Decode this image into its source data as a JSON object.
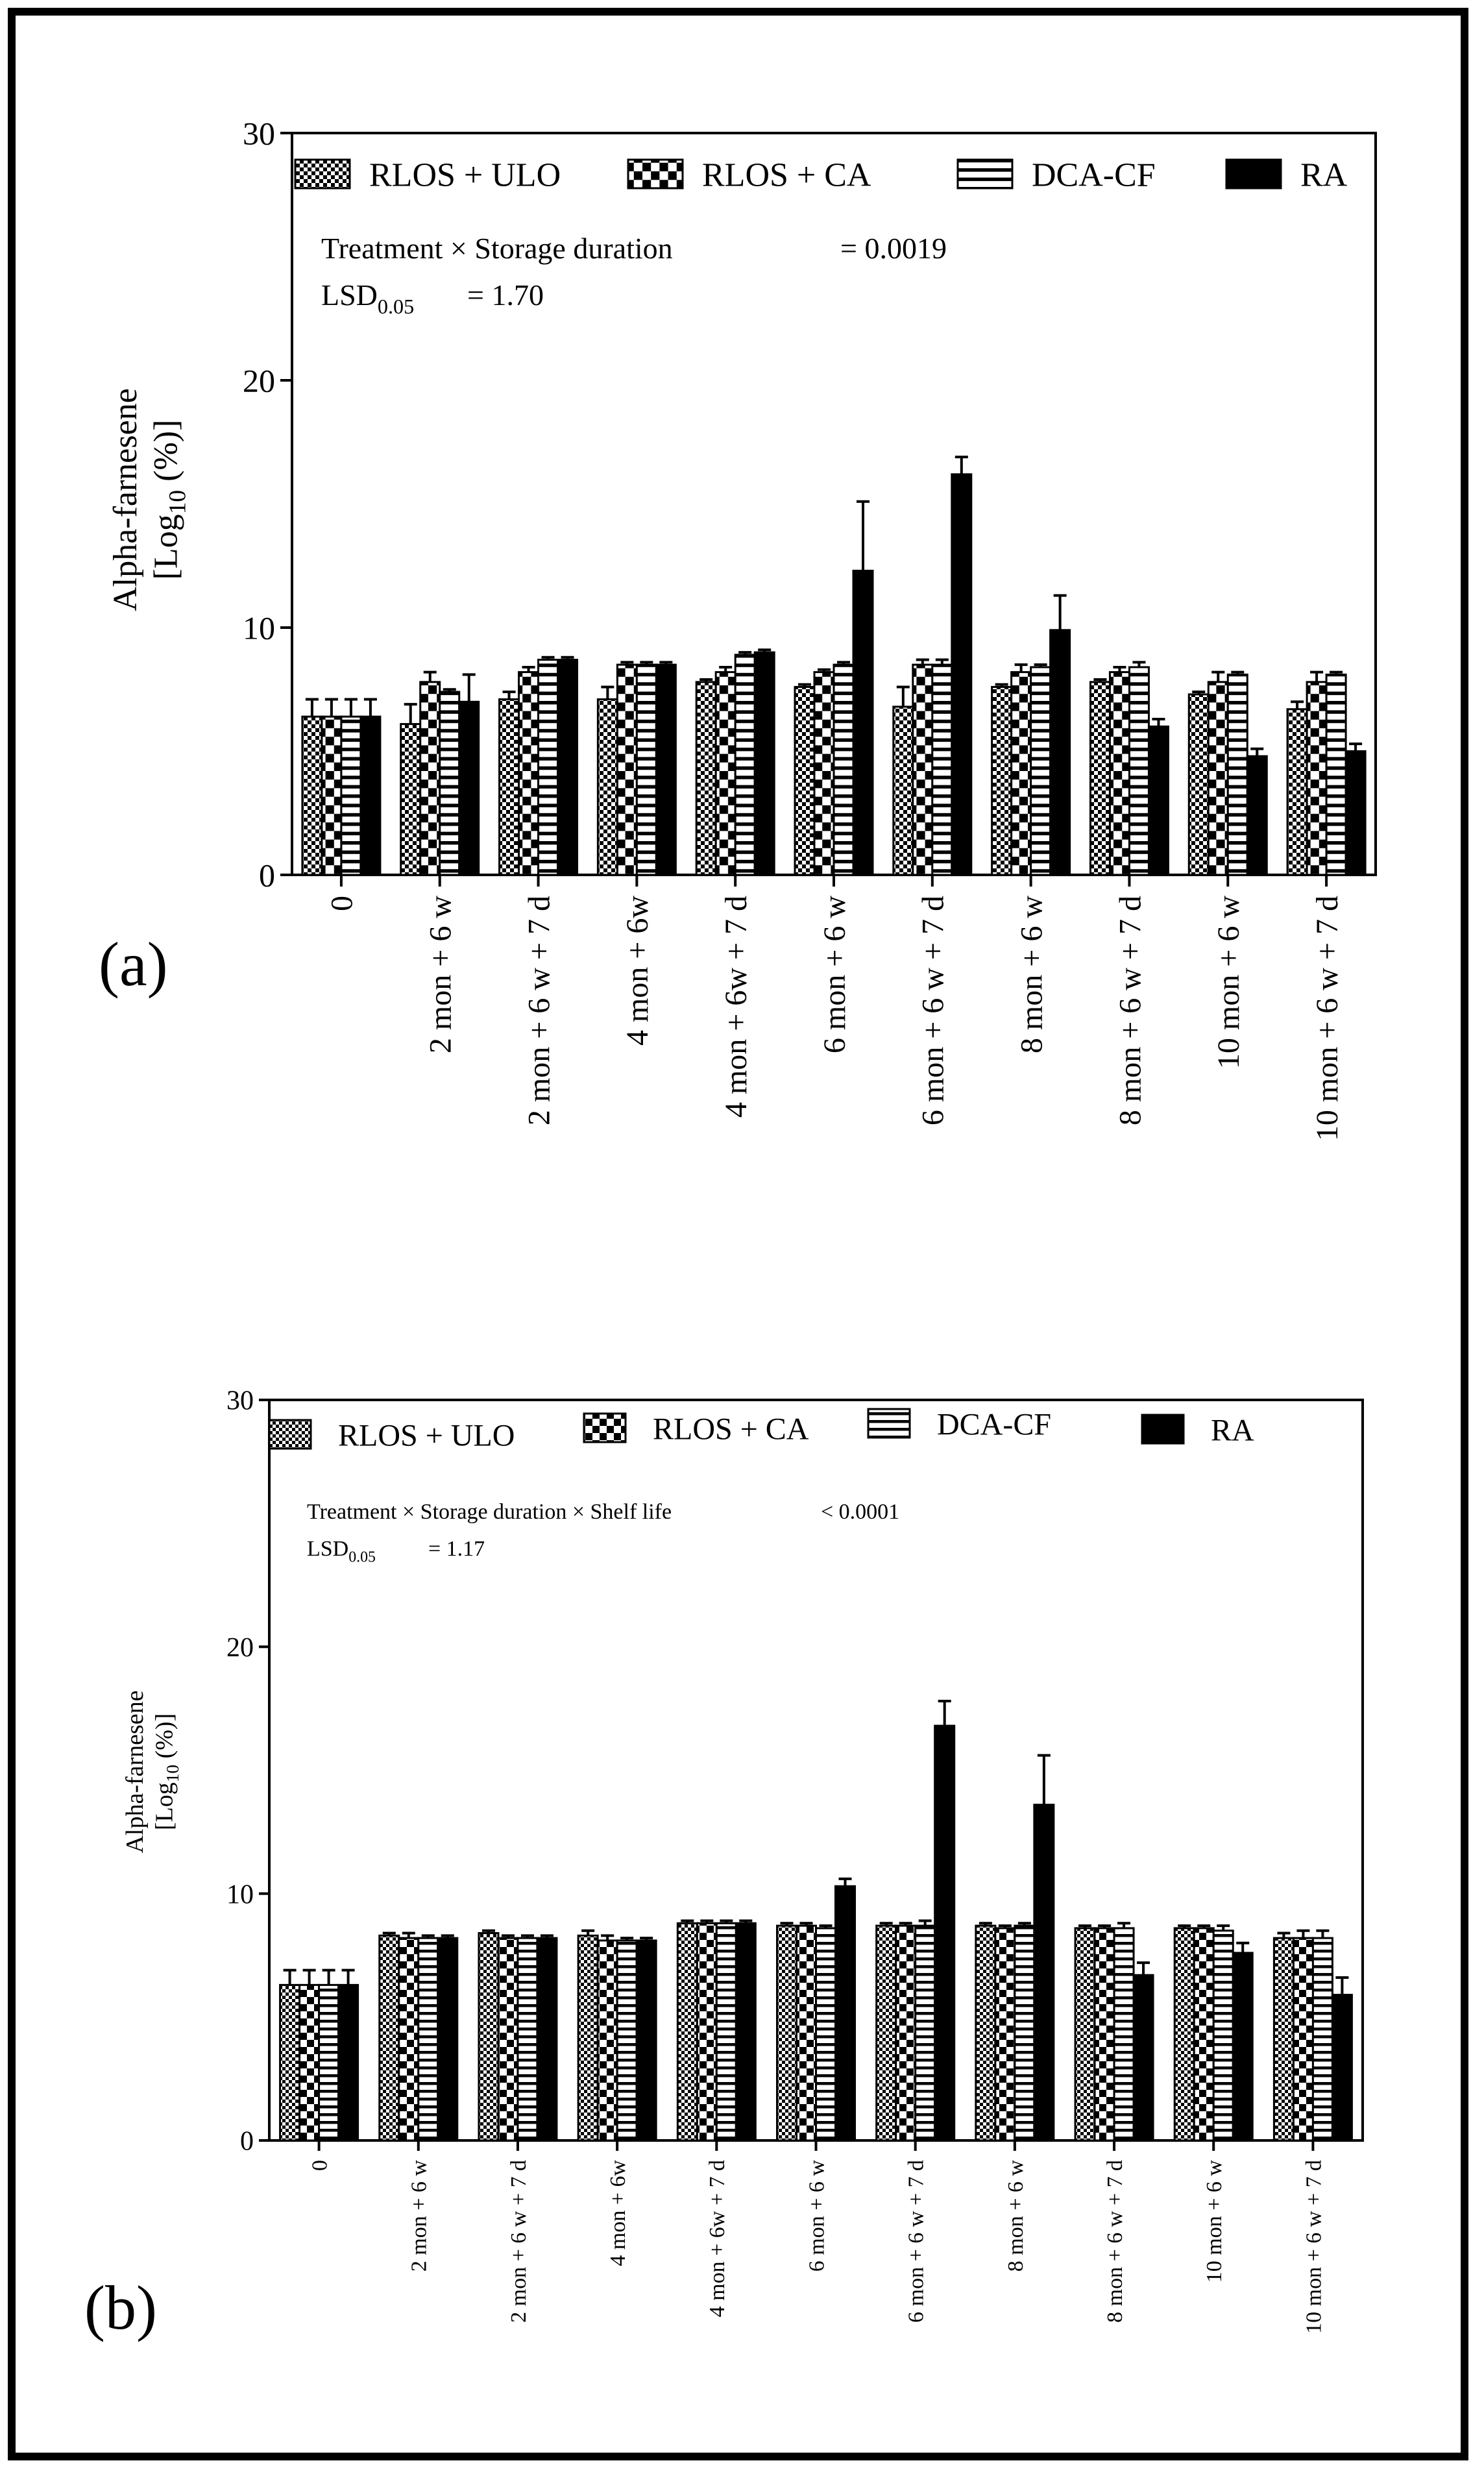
{
  "panel_labels": {
    "a": "(a)",
    "b": "(b)"
  },
  "colors": {
    "ink": "#000000",
    "background": "#ffffff"
  },
  "legend_patterns": {
    "RLOS + ULO": "fine-check",
    "RLOS + CA": "coarse-check",
    "DCA-CF": "horizontal-lines",
    "RA": "solid"
  },
  "chart_data": [
    {
      "id": "a",
      "type": "bar",
      "categories": [
        "0",
        "2 mon + 6 w",
        "2 mon + 6 w + 7 d",
        "4 mon + 6w",
        "4 mon + 6w + 7 d",
        "6 mon + 6 w",
        "6 mon + 6 w + 7 d",
        "8 mon + 6 w",
        "8 mon + 6 w + 7 d",
        "10 mon + 6 w",
        "10 mon + 6 w + 7 d"
      ],
      "series": [
        {
          "name": "RLOS + ULO",
          "values": [
            6.4,
            6.1,
            7.1,
            7.1,
            7.8,
            7.6,
            6.8,
            7.6,
            7.8,
            7.3,
            6.7
          ],
          "errors": [
            0.7,
            0.8,
            0.3,
            0.5,
            0.1,
            0.1,
            0.8,
            0.1,
            0.1,
            0.1,
            0.3
          ]
        },
        {
          "name": "RLOS + CA",
          "values": [
            6.4,
            7.8,
            8.2,
            8.5,
            8.2,
            8.2,
            8.5,
            8.2,
            8.2,
            7.8,
            7.8
          ],
          "errors": [
            0.7,
            0.4,
            0.2,
            0.1,
            0.2,
            0.1,
            0.2,
            0.3,
            0.2,
            0.4,
            0.4
          ]
        },
        {
          "name": "DCA-CF",
          "values": [
            6.4,
            7.4,
            8.7,
            8.5,
            8.9,
            8.5,
            8.5,
            8.4,
            8.4,
            8.1,
            8.1
          ],
          "errors": [
            0.7,
            0.1,
            0.1,
            0.1,
            0.1,
            0.1,
            0.2,
            0.1,
            0.2,
            0.1,
            0.1
          ]
        },
        {
          "name": "RA",
          "values": [
            6.4,
            7.0,
            8.7,
            8.5,
            9.0,
            12.3,
            16.2,
            9.9,
            6.0,
            4.8,
            5.0
          ],
          "errors": [
            0.7,
            1.1,
            0.1,
            0.1,
            0.1,
            2.8,
            0.7,
            1.4,
            0.3,
            0.3,
            0.3
          ]
        }
      ],
      "ylim": [
        0,
        30
      ],
      "yticks": [
        0,
        10,
        20,
        30
      ],
      "ylabel_line1": "Alpha-farnesene",
      "ylabel_line2_pre": "[Log",
      "ylabel_line2_sub": "10",
      "ylabel_line2_post": " (%)]",
      "xlabel": "",
      "stat_label": "Treatment × Storage duration",
      "stat_value": "= 0.0019",
      "lsd_main": "LSD",
      "lsd_sub": "0.05",
      "lsd_value": "=  1.70",
      "legend": [
        "RLOS + ULO",
        "RLOS + CA",
        "DCA-CF",
        "RA"
      ]
    },
    {
      "id": "b",
      "type": "bar",
      "categories": [
        "0",
        "2 mon + 6 w",
        "2 mon + 6 w + 7 d",
        "4 mon + 6w",
        "4 mon + 6w + 7 d",
        "6 mon + 6 w",
        "6 mon + 6 w + 7 d",
        "8 mon + 6 w",
        "8 mon + 6 w + 7 d",
        "10 mon + 6 w",
        "10 mon + 6 w + 7 d"
      ],
      "series": [
        {
          "name": "RLOS + ULO",
          "values": [
            6.3,
            8.3,
            8.4,
            8.3,
            8.8,
            8.7,
            8.7,
            8.7,
            8.6,
            8.6,
            8.2
          ],
          "errors": [
            0.6,
            0.1,
            0.1,
            0.2,
            0.1,
            0.1,
            0.1,
            0.1,
            0.1,
            0.1,
            0.2
          ]
        },
        {
          "name": "RLOS + CA",
          "values": [
            6.3,
            8.2,
            8.2,
            8.1,
            8.8,
            8.7,
            8.7,
            8.6,
            8.6,
            8.6,
            8.2
          ],
          "errors": [
            0.6,
            0.2,
            0.1,
            0.2,
            0.1,
            0.1,
            0.1,
            0.1,
            0.1,
            0.1,
            0.3
          ]
        },
        {
          "name": "DCA-CF",
          "values": [
            6.3,
            8.2,
            8.2,
            8.1,
            8.8,
            8.6,
            8.7,
            8.7,
            8.6,
            8.5,
            8.2
          ],
          "errors": [
            0.6,
            0.1,
            0.1,
            0.1,
            0.1,
            0.1,
            0.2,
            0.1,
            0.2,
            0.2,
            0.3
          ]
        },
        {
          "name": "RA",
          "values": [
            6.3,
            8.2,
            8.2,
            8.1,
            8.8,
            10.3,
            16.8,
            13.6,
            6.7,
            7.6,
            5.9
          ],
          "errors": [
            0.6,
            0.1,
            0.1,
            0.1,
            0.1,
            0.3,
            1.0,
            2.0,
            0.5,
            0.4,
            0.7
          ]
        }
      ],
      "ylim": [
        0,
        30
      ],
      "yticks": [
        0,
        10,
        20,
        30
      ],
      "ylabel_line1": "Alpha-farnesene",
      "ylabel_line2_pre": "[Log",
      "ylabel_line2_sub": "10",
      "ylabel_line2_post": " (%)]",
      "xlabel": "",
      "stat_label": "Treatment × Storage duration  × Shelf life",
      "stat_value": "< 0.0001",
      "lsd_main": "LSD",
      "lsd_sub": "0.05",
      "lsd_value": "=  1.17",
      "legend": [
        "RLOS + ULO",
        "RLOS + CA",
        "DCA-CF",
        "RA"
      ]
    }
  ]
}
